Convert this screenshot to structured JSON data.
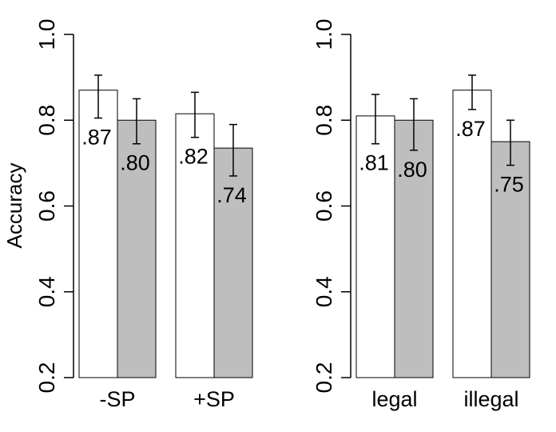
{
  "chart_data": [
    {
      "type": "bar",
      "ylabel": "Accuracy",
      "ylim": [
        0.2,
        1.0
      ],
      "yticks": [
        "0.2",
        "0.4",
        "0.6",
        "0.8",
        "1.0"
      ],
      "categories": [
        "-SP",
        "+SP"
      ],
      "series": [
        {
          "color": "#ffffff",
          "values": [
            0.87,
            0.815
          ],
          "error_low": [
            0.805,
            0.76
          ],
          "error_high": [
            0.905,
            0.865
          ],
          "labels": [
            ".87",
            ".82"
          ]
        },
        {
          "color": "#bebebe",
          "values": [
            0.8,
            0.735
          ],
          "error_low": [
            0.745,
            0.67
          ],
          "error_high": [
            0.85,
            0.79
          ],
          "labels": [
            ".80",
            ".74"
          ]
        }
      ]
    },
    {
      "type": "bar",
      "ylabel": "",
      "ylim": [
        0.2,
        1.0
      ],
      "yticks": [
        "0.2",
        "0.4",
        "0.6",
        "0.8",
        "1.0"
      ],
      "categories": [
        "legal",
        "illegal"
      ],
      "series": [
        {
          "color": "#ffffff",
          "values": [
            0.81,
            0.87
          ],
          "error_low": [
            0.745,
            0.825
          ],
          "error_high": [
            0.86,
            0.905
          ],
          "labels": [
            ".81",
            ".87"
          ]
        },
        {
          "color": "#bebebe",
          "values": [
            0.8,
            0.75
          ],
          "error_low": [
            0.73,
            0.695
          ],
          "error_high": [
            0.85,
            0.8
          ],
          "labels": [
            ".80",
            ".75"
          ]
        }
      ]
    }
  ]
}
